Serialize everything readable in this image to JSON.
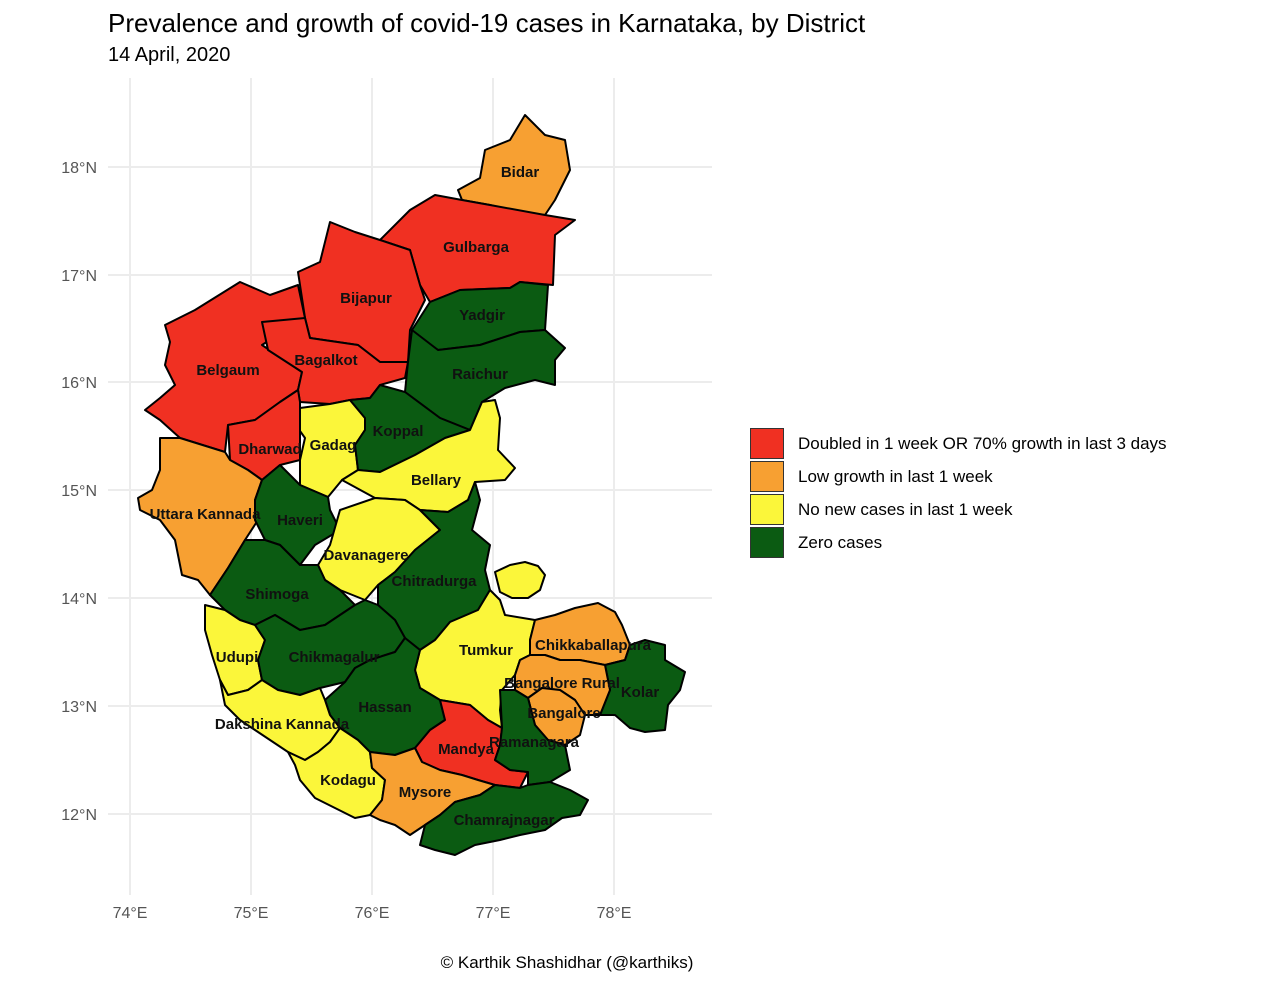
{
  "title": "Prevalence and growth of covid-19 cases in Karnataka, by District",
  "subtitle": "14 April, 2020",
  "caption": "© Karthik Shashidhar (@karthiks)",
  "colors": {
    "doubled": "#f03022",
    "low": "#f7a032",
    "none": "#fbf63a",
    "zero": "#0b5b12"
  },
  "axes": {
    "x_ticks": [
      "74°E",
      "75°E",
      "76°E",
      "77°E",
      "78°E"
    ],
    "y_ticks": [
      "18°N",
      "17°N",
      "16°N",
      "15°N",
      "14°N",
      "13°N",
      "12°N"
    ]
  },
  "legend": [
    {
      "key": "doubled",
      "label": "Doubled in 1 week OR 70% growth in last 3 days"
    },
    {
      "key": "low",
      "label": "Low growth in last 1 week"
    },
    {
      "key": "none",
      "label": "No new cases in last 1 week"
    },
    {
      "key": "zero",
      "label": "Zero cases"
    }
  ],
  "districts": [
    {
      "name": "Bidar",
      "category": "low"
    },
    {
      "name": "Gulbarga",
      "category": "doubled"
    },
    {
      "name": "Bijapur",
      "category": "doubled"
    },
    {
      "name": "Yadgir",
      "category": "zero"
    },
    {
      "name": "Belgaum",
      "category": "doubled"
    },
    {
      "name": "Bagalkot",
      "category": "doubled"
    },
    {
      "name": "Raichur",
      "category": "zero"
    },
    {
      "name": "Gadag",
      "category": "none"
    },
    {
      "name": "Koppal",
      "category": "zero"
    },
    {
      "name": "Dharwad",
      "category": "doubled"
    },
    {
      "name": "Bellary",
      "category": "none"
    },
    {
      "name": "Uttara Kannada",
      "category": "low"
    },
    {
      "name": "Haveri",
      "category": "zero"
    },
    {
      "name": "Davanagere",
      "category": "none"
    },
    {
      "name": "Chitradurga",
      "category": "zero"
    },
    {
      "name": "Shimoga",
      "category": "zero"
    },
    {
      "name": "Udupi",
      "category": "none"
    },
    {
      "name": "Chikmagalur",
      "category": "zero"
    },
    {
      "name": "Tumkur",
      "category": "none"
    },
    {
      "name": "Chikkaballapura",
      "category": "low"
    },
    {
      "name": "Kolar",
      "category": "zero"
    },
    {
      "name": "Bangalore Rural",
      "category": "low"
    },
    {
      "name": "Bangalore",
      "category": "low"
    },
    {
      "name": "Hassan",
      "category": "zero"
    },
    {
      "name": "Dakshina Kannada",
      "category": "none"
    },
    {
      "name": "Mandya",
      "category": "doubled"
    },
    {
      "name": "Ramanagara",
      "category": "zero"
    },
    {
      "name": "Kodagu",
      "category": "none"
    },
    {
      "name": "Mysore",
      "category": "low"
    },
    {
      "name": "Chamrajnagar",
      "category": "zero"
    }
  ]
}
